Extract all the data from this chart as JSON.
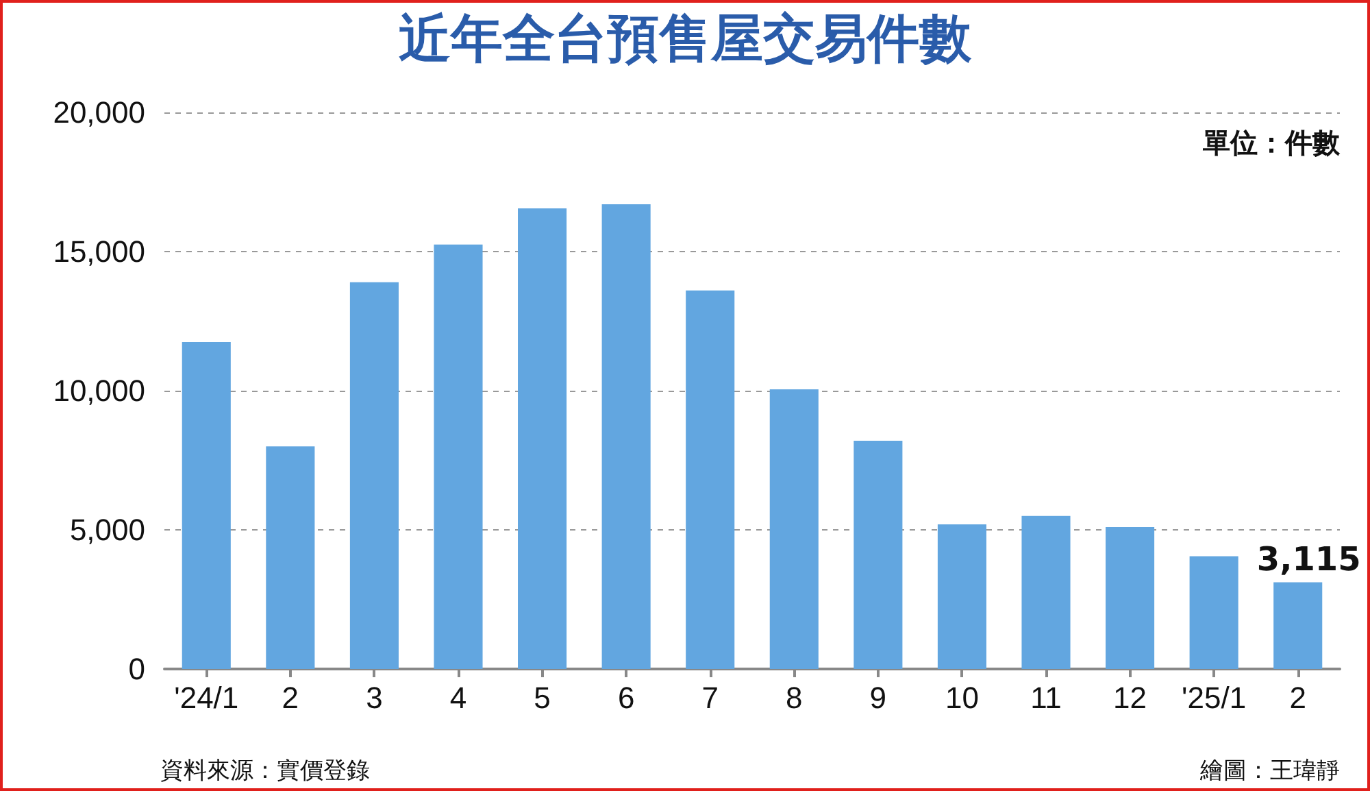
{
  "chart_data": {
    "type": "bar",
    "title": "近年全台預售屋交易件數",
    "categories": [
      "'24/1",
      "2",
      "3",
      "4",
      "5",
      "6",
      "7",
      "8",
      "9",
      "10",
      "11",
      "12",
      "'25/1",
      "2"
    ],
    "values": [
      11750,
      8000,
      13900,
      15250,
      16550,
      16700,
      13600,
      10050,
      8200,
      5200,
      5500,
      5100,
      4050,
      3115
    ],
    "value_labels": [
      null,
      null,
      null,
      null,
      null,
      null,
      null,
      null,
      null,
      null,
      null,
      null,
      null,
      "3,115"
    ],
    "color": "#62a6e0",
    "ylim": [
      0,
      20000
    ],
    "yticks": [
      0,
      {
        "value": 5000,
        "label": "5,000"
      },
      {
        "value": 10000,
        "label": "10,000"
      },
      {
        "value": 15000,
        "label": "15,000"
      },
      {
        "value": 20000,
        "label": "20,000"
      }
    ],
    "grid": "y",
    "annotations": [
      "單位：件數",
      "資料來源：實價登錄",
      "繪圖：王瑋靜"
    ]
  }
}
